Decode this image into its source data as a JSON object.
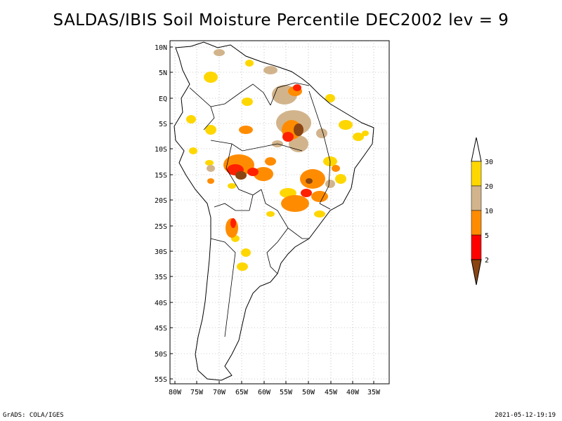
{
  "title": "SALDAS/IBIS Soil Moisture Percentile DEC2002 lev = 9",
  "map": {
    "region": "South America",
    "lat_labels": [
      "10N",
      "5N",
      "EQ",
      "5S",
      "10S",
      "15S",
      "20S",
      "25S",
      "30S",
      "35S",
      "40S",
      "45S",
      "50S",
      "55S"
    ],
    "lon_labels": [
      "80W",
      "75W",
      "70W",
      "65W",
      "60W",
      "55W",
      "50W",
      "45W",
      "40W",
      "35W"
    ],
    "grid": "dotted",
    "extent": {
      "lon": [
        -81,
        -33
      ],
      "lat": [
        -56,
        11
      ]
    }
  },
  "legend": {
    "levels": [
      "2",
      "5",
      "10",
      "20",
      "30"
    ],
    "colors": [
      "#8b4513",
      "#ff0000",
      "#ff8c00",
      "#d2b48c",
      "#ffd700",
      "#ffffff"
    ]
  },
  "footer": {
    "left": "GrADS: COLA/IGES",
    "right": "2021-05-12-19:19"
  }
}
